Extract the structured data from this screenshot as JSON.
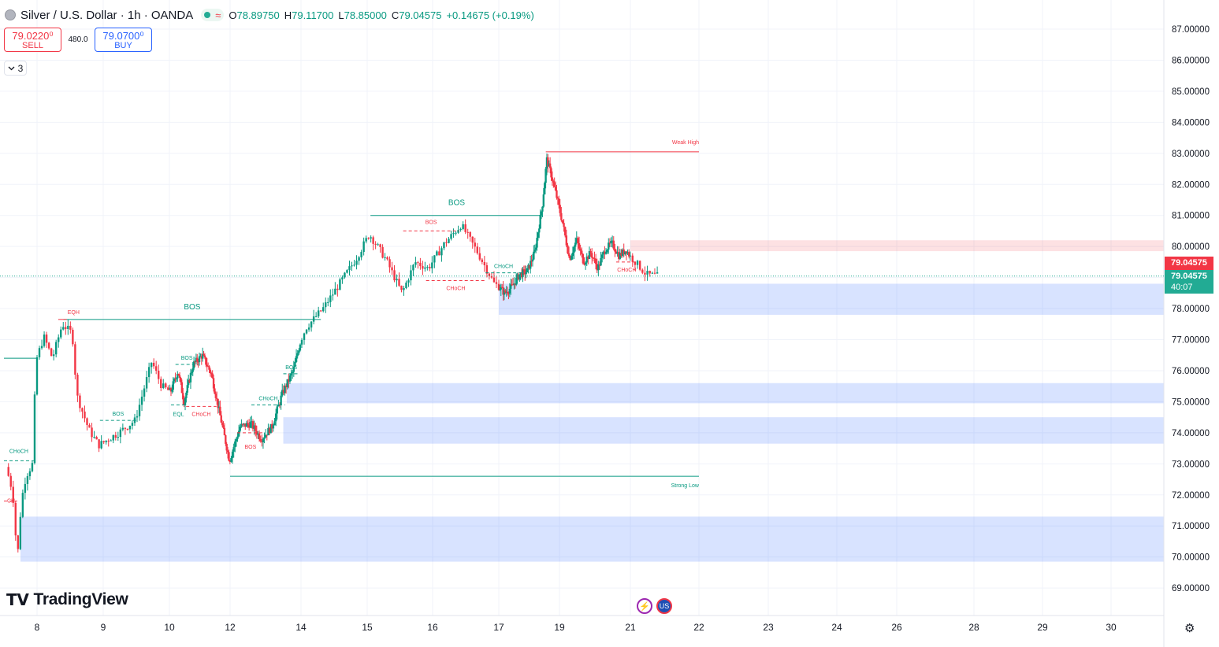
{
  "header": {
    "symbol_title": "Silver / U.S. Dollar · 1h · OANDA",
    "status_icon": "dot-green",
    "wave_icon": "≈",
    "open_label": "O",
    "open": "78.89750",
    "high_label": "H",
    "high": "79.11700",
    "low_label": "L",
    "low": "78.85000",
    "close_label": "C",
    "close": "79.04575",
    "change": "+0.14675 (+0.19%)"
  },
  "trade": {
    "sell_price": "79.0220⁰",
    "sell_label": "SELL",
    "spread": "480.0",
    "buy_price": "79.0700⁰",
    "buy_label": "BUY"
  },
  "indicators": {
    "collapse_icon": "chevron-down-icon",
    "count": "3"
  },
  "branding": {
    "logo_mark": "TV",
    "logo_text": "TradingView"
  },
  "price_tags": {
    "bid": "79.04575",
    "last": "79.04575",
    "countdown": "40:07"
  },
  "events": {
    "bolt_icon": "⚡",
    "flag_icon": "US"
  },
  "settings_icon": "⚙",
  "chart_data": {
    "type": "candlestick",
    "symbol": "XAGUSD",
    "timeframe": "1h",
    "ylim": [
      68.5,
      87.5
    ],
    "y_ticks": [
      69,
      70,
      71,
      72,
      73,
      74,
      75,
      76,
      77,
      78,
      79,
      80,
      81,
      82,
      83,
      84,
      85,
      86,
      87
    ],
    "y_tick_labels": [
      "69.00000",
      "70.00000",
      "71.00000",
      "72.00000",
      "73.00000",
      "74.00000",
      "75.00000",
      "76.00000",
      "77.00000",
      "78.00000",
      "79.00000",
      "80.00000",
      "81.00000",
      "82.00000",
      "83.00000",
      "84.00000",
      "85.00000",
      "86.00000",
      "87.00000"
    ],
    "x_ticks": [
      "8",
      "9",
      "10",
      "12",
      "14",
      "15",
      "16",
      "17",
      "19",
      "21",
      "22",
      "23",
      "24",
      "26",
      "28",
      "29",
      "30"
    ],
    "x_tick_days": [
      8,
      9,
      10,
      12,
      14,
      15,
      16,
      17,
      19,
      21,
      22,
      23,
      24,
      26,
      28,
      29,
      30
    ],
    "grid": true,
    "last_price": 79.04575,
    "price_path": [
      {
        "d": 7.55,
        "p": 72.9
      },
      {
        "d": 7.65,
        "p": 72.1
      },
      {
        "d": 7.72,
        "p": 69.9
      },
      {
        "d": 7.78,
        "p": 71.8
      },
      {
        "d": 7.85,
        "p": 72.6
      },
      {
        "d": 7.95,
        "p": 73.0
      },
      {
        "d": 8.0,
        "p": 76.3
      },
      {
        "d": 8.12,
        "p": 77.1
      },
      {
        "d": 8.25,
        "p": 76.4
      },
      {
        "d": 8.4,
        "p": 77.5
      },
      {
        "d": 8.55,
        "p": 77.2
      },
      {
        "d": 8.62,
        "p": 75.2
      },
      {
        "d": 8.8,
        "p": 74.1
      },
      {
        "d": 8.95,
        "p": 73.6
      },
      {
        "d": 9.1,
        "p": 73.8
      },
      {
        "d": 9.25,
        "p": 74.0
      },
      {
        "d": 9.5,
        "p": 74.4
      },
      {
        "d": 9.75,
        "p": 76.3
      },
      {
        "d": 9.9,
        "p": 75.5
      },
      {
        "d": 10.05,
        "p": 75.3
      },
      {
        "d": 10.3,
        "p": 76.0
      },
      {
        "d": 10.5,
        "p": 75.0
      },
      {
        "d": 10.8,
        "p": 76.2
      },
      {
        "d": 11.1,
        "p": 76.5
      },
      {
        "d": 11.4,
        "p": 75.9
      },
      {
        "d": 12.0,
        "p": 73.1
      },
      {
        "d": 12.3,
        "p": 74.2
      },
      {
        "d": 12.6,
        "p": 74.3
      },
      {
        "d": 12.9,
        "p": 73.8
      },
      {
        "d": 13.2,
        "p": 74.2
      },
      {
        "d": 13.5,
        "p": 75.3
      },
      {
        "d": 13.8,
        "p": 76.0
      },
      {
        "d": 14.1,
        "p": 77.4
      },
      {
        "d": 14.35,
        "p": 78.0
      },
      {
        "d": 14.6,
        "p": 78.8
      },
      {
        "d": 14.85,
        "p": 79.6
      },
      {
        "d": 15.05,
        "p": 80.4
      },
      {
        "d": 15.3,
        "p": 79.6
      },
      {
        "d": 15.55,
        "p": 78.5
      },
      {
        "d": 15.75,
        "p": 79.5
      },
      {
        "d": 15.95,
        "p": 79.3
      },
      {
        "d": 16.2,
        "p": 80.1
      },
      {
        "d": 16.45,
        "p": 80.7
      },
      {
        "d": 16.7,
        "p": 79.8
      },
      {
        "d": 16.95,
        "p": 78.8
      },
      {
        "d": 17.2,
        "p": 78.5
      },
      {
        "d": 17.45,
        "p": 78.7
      },
      {
        "d": 17.7,
        "p": 79.1
      },
      {
        "d": 17.95,
        "p": 79.2
      },
      {
        "d": 18.2,
        "p": 79.8
      },
      {
        "d": 18.45,
        "p": 81.3
      },
      {
        "d": 18.6,
        "p": 82.8
      },
      {
        "d": 18.75,
        "p": 82.3
      },
      {
        "d": 18.95,
        "p": 81.5
      },
      {
        "d": 19.1,
        "p": 80.8
      },
      {
        "d": 19.3,
        "p": 79.6
      },
      {
        "d": 19.5,
        "p": 80.2
      },
      {
        "d": 19.7,
        "p": 79.5
      },
      {
        "d": 19.9,
        "p": 79.8
      },
      {
        "d": 20.1,
        "p": 79.3
      },
      {
        "d": 20.3,
        "p": 79.9
      },
      {
        "d": 20.5,
        "p": 80.1
      },
      {
        "d": 20.7,
        "p": 79.7
      },
      {
        "d": 20.9,
        "p": 79.9
      },
      {
        "d": 21.05,
        "p": 79.6
      },
      {
        "d": 21.25,
        "p": 79.1
      },
      {
        "d": 21.4,
        "p": 79.05
      }
    ],
    "zones": [
      {
        "kind": "supply",
        "d0": 21.0,
        "d1": 31.8,
        "y0": 79.85,
        "y1": 80.2
      },
      {
        "kind": "demand",
        "d0": 17.0,
        "d1": 31.8,
        "y0": 77.8,
        "y1": 78.8
      },
      {
        "kind": "demand",
        "d0": 13.6,
        "d1": 31.8,
        "y0": 74.95,
        "y1": 75.6
      },
      {
        "kind": "demand",
        "d0": 13.5,
        "d1": 31.8,
        "y0": 73.65,
        "y1": 74.5
      },
      {
        "kind": "demand",
        "d0": 7.75,
        "d1": 31.8,
        "y0": 69.85,
        "y1": 71.3
      }
    ],
    "structure_lines": [
      {
        "label": "Weak High",
        "d0": 18.55,
        "d1": 22.0,
        "y": 83.05,
        "color": "#f23645",
        "dash": false
      },
      {
        "label": "Strong Low",
        "d0": 12.0,
        "d1": 22.0,
        "y": 72.6,
        "color": "#089981",
        "dash": false
      },
      {
        "label": "BOS",
        "d0": 15.05,
        "d1": 18.45,
        "y": 81.0,
        "color": "#089981",
        "dash": false
      },
      {
        "label": "BOS",
        "d0": 8.4,
        "d1": 14.3,
        "y": 77.65,
        "color": "#089981",
        "dash": false
      },
      {
        "label": "EQH",
        "d0": 8.32,
        "d1": 8.45,
        "y": 77.65,
        "color": "#f23645",
        "dash": false
      },
      {
        "label": "BOS",
        "d0": 15.55,
        "d1": 16.4,
        "y": 80.5,
        "color": "#f23645",
        "dash": true
      },
      {
        "label": "CHoCH",
        "d0": 15.9,
        "d1": 16.8,
        "y": 78.9,
        "color": "#f23645",
        "dash": true
      },
      {
        "label": "CHoCH",
        "d0": 16.8,
        "d1": 17.75,
        "y": 79.15,
        "color": "#089981",
        "dash": true
      },
      {
        "label": "CHoCH",
        "d0": 20.6,
        "d1": 21.1,
        "y": 79.5,
        "color": "#f23645",
        "dash": true
      },
      {
        "label": "BOS",
        "d0": 10.2,
        "d1": 10.95,
        "y": 76.2,
        "color": "#089981",
        "dash": true
      },
      {
        "label": "BOS",
        "d0": 8.95,
        "d1": 9.5,
        "y": 74.4,
        "color": "#089981",
        "dash": true
      },
      {
        "label": "EQL",
        "d0": 10.05,
        "d1": 10.55,
        "y": 74.9,
        "color": "#089981",
        "dash": true
      },
      {
        "label": "CHoCH",
        "d0": 10.55,
        "d1": 11.55,
        "y": 74.85,
        "color": "#f23645",
        "dash": true
      },
      {
        "label": "BOS",
        "d0": 12.2,
        "d1": 12.95,
        "y": 74.0,
        "color": "#f23645",
        "dash": true
      },
      {
        "label": "CHoCH",
        "d0": 12.6,
        "d1": 13.55,
        "y": 74.9,
        "color": "#089981",
        "dash": true
      },
      {
        "label": "BOS",
        "d0": 13.5,
        "d1": 13.95,
        "y": 75.9,
        "color": "#089981",
        "dash": true
      },
      {
        "label": "CHoCH",
        "d0": 7.5,
        "d1": 7.95,
        "y": 73.1,
        "color": "#089981",
        "dash": true
      },
      {
        "label": "CH",
        "d0": 7.5,
        "d1": 7.7,
        "y": 71.8,
        "color": "#f23645",
        "dash": true
      }
    ],
    "step_line": {
      "color": "#089981",
      "points": [
        [
          7.5,
          76.4
        ],
        [
          8.0,
          76.4
        ]
      ]
    }
  }
}
